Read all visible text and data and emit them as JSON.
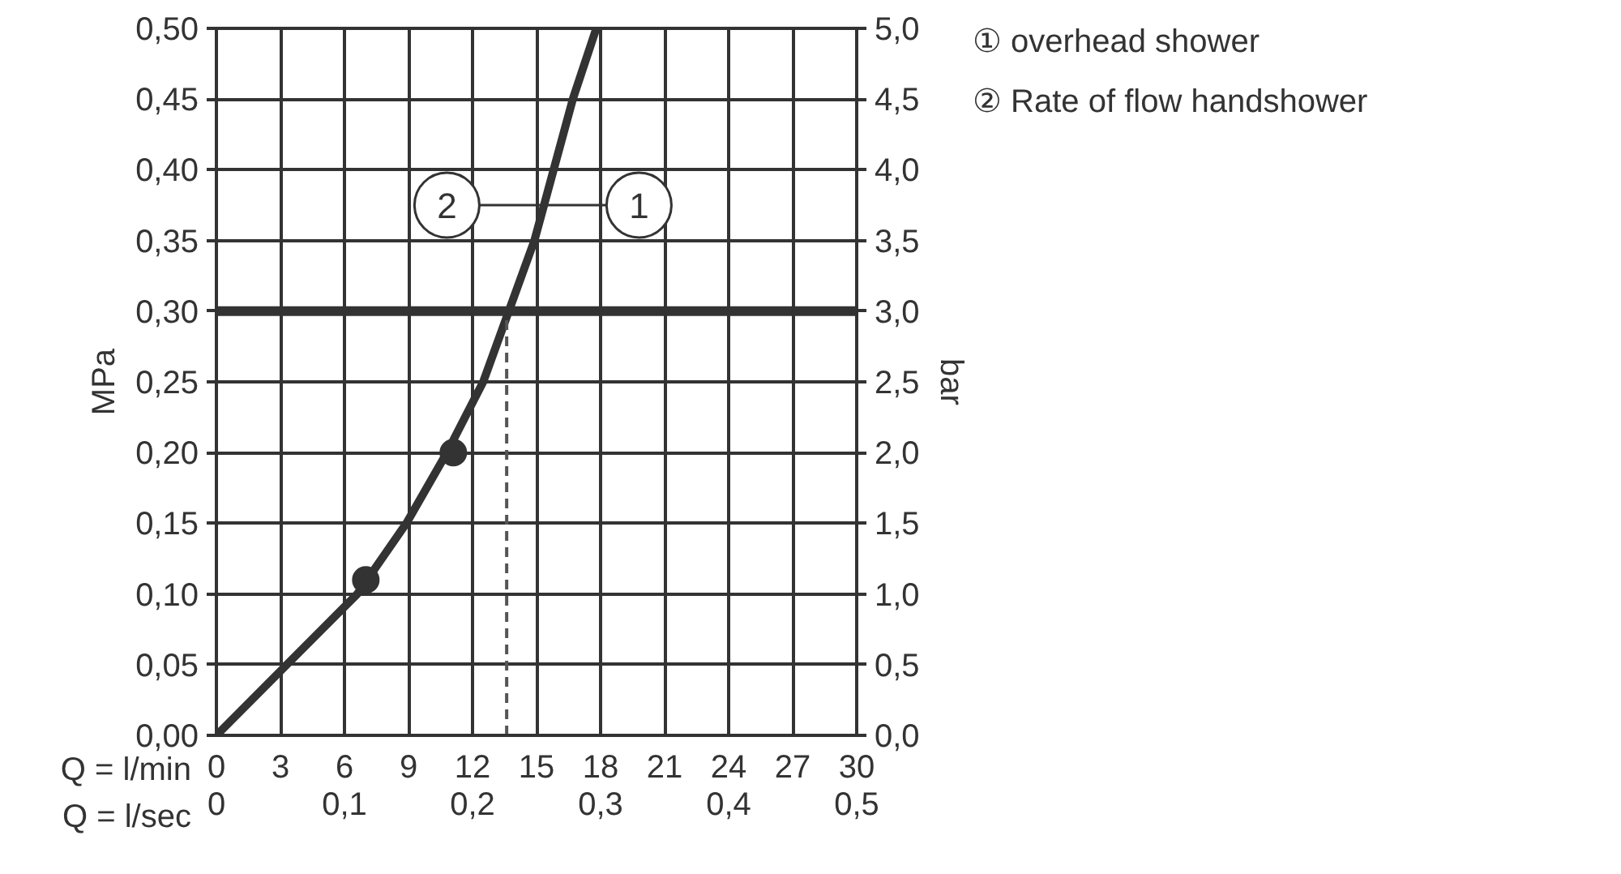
{
  "chart_data": {
    "type": "line",
    "xlabel": "Q = l/min",
    "ylabel": "MPa",
    "y2label": "bar",
    "x2label": "Q = l/sec",
    "xlim": [
      0,
      30
    ],
    "xticks": [
      0,
      3,
      6,
      9,
      12,
      15,
      18,
      21,
      24,
      27,
      30
    ],
    "ylim": [
      0,
      0.5
    ],
    "yticks": [
      {
        "value": 0,
        "label": "0,00"
      },
      {
        "value": 0.05,
        "label": "0,05"
      },
      {
        "value": 0.1,
        "label": "0,10"
      },
      {
        "value": 0.15,
        "label": "0,15"
      },
      {
        "value": 0.2,
        "label": "0,20"
      },
      {
        "value": 0.25,
        "label": "0,25"
      },
      {
        "value": 0.3,
        "label": "0,30"
      },
      {
        "value": 0.35,
        "label": "0,35"
      },
      {
        "value": 0.4,
        "label": "0,40"
      },
      {
        "value": 0.45,
        "label": "0,45"
      },
      {
        "value": 0.5,
        "label": "0,50"
      }
    ],
    "y2lim": [
      0,
      5
    ],
    "y2ticks": [
      {
        "value": 0,
        "label": "0,0"
      },
      {
        "value": 0.5,
        "label": "0,5"
      },
      {
        "value": 1,
        "label": "1,0"
      },
      {
        "value": 1.5,
        "label": "1,5"
      },
      {
        "value": 2,
        "label": "2,0"
      },
      {
        "value": 2.5,
        "label": "2,5"
      },
      {
        "value": 3,
        "label": "3,0"
      },
      {
        "value": 3.5,
        "label": "3,5"
      },
      {
        "value": 4,
        "label": "4,0"
      },
      {
        "value": 4.5,
        "label": "4,5"
      },
      {
        "value": 5,
        "label": "5,0"
      }
    ],
    "x2lim": [
      0,
      0.5
    ],
    "x2ticks": [
      0,
      {
        "value": 0.1,
        "label": "0,1"
      },
      {
        "value": 0.2,
        "label": "0,2"
      },
      {
        "value": 0.3,
        "label": "0,3"
      },
      {
        "value": 0.4,
        "label": "0,4"
      },
      {
        "value": 0.5,
        "label": "0,5"
      }
    ],
    "grid": true,
    "series": [
      {
        "color": "#333333",
        "x": [
          0,
          3.3,
          6.6,
          8.9,
          10.8,
          12.5,
          13.7,
          14.9,
          15.8,
          16.7,
          17.8
        ],
        "values": [
          0,
          0.05,
          0.1,
          0.15,
          0.2,
          0.25,
          0.3,
          0.35,
          0.4,
          0.45,
          0.5
        ]
      },
      {
        "type": "scatter",
        "color": "#333333",
        "marker": "circle",
        "x": [
          7.0,
          11.1
        ],
        "values": [
          0.11,
          0.2
        ]
      },
      {
        "type": "line",
        "color": "#555555",
        "line_style": "dashed",
        "x": [
          13.6,
          13.6
        ],
        "values": [
          0,
          0.3
        ]
      }
    ],
    "ref_lines": [
      {
        "axis": "y",
        "value": 0.3,
        "color": "#333333"
      }
    ],
    "annotations": [
      {
        "text": "2",
        "x": 10.8,
        "y": 0.375
      },
      {
        "text": "1",
        "x": 19.8,
        "y": 0.375
      },
      "① overhead shower",
      "② Rate of flow handshower"
    ]
  }
}
